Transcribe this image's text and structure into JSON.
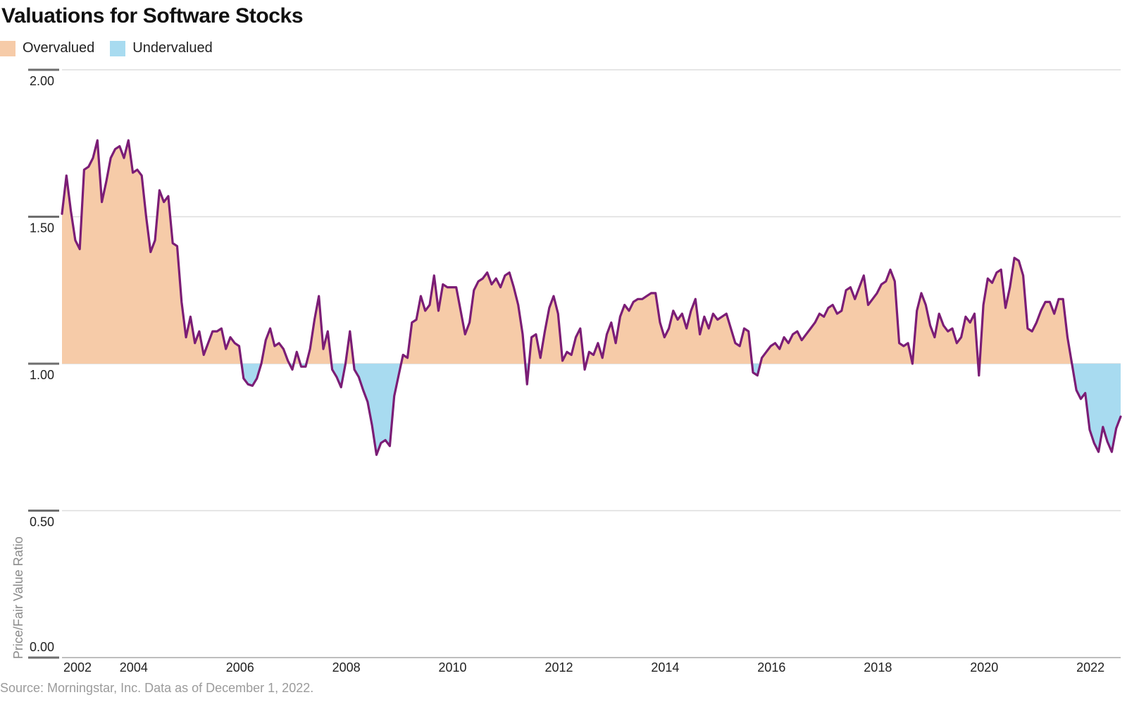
{
  "header": {
    "title": "Valuations for Software Stocks"
  },
  "legend": {
    "items": [
      {
        "label": "Overvalued",
        "color": "#F6CBA8"
      },
      {
        "label": "Undervalued",
        "color": "#A8DBF0"
      }
    ]
  },
  "footer": {
    "source": "Source: Morningstar, Inc. Data as of December 1, 2022."
  },
  "chart_data": {
    "type": "area",
    "title": "Valuations for Software Stocks",
    "ylabel": "Price/Fair Value Ratio",
    "xlabel": "",
    "ylim": [
      0,
      2
    ],
    "yticks": [
      2.0,
      1.5,
      1.0,
      0.5,
      0.0
    ],
    "ytick_labels": [
      "2.00",
      "1.50",
      "1.00",
      "0.50",
      "0.00"
    ],
    "xtick_labels": [
      "2002",
      "2004",
      "2006",
      "2008",
      "2010",
      "2012",
      "2014",
      "2016",
      "2018",
      "2020",
      "2022"
    ],
    "baseline": 1.0,
    "frequency": "monthly",
    "start": "2002-12",
    "end": "2022-11",
    "grid": true,
    "legend_position": "top-left",
    "colors": {
      "overvalued": "#F6CBA8",
      "undervalued": "#A8DBF0",
      "line": "#7B1D76",
      "gridline": "#dedede",
      "axis": "#a8a8a8",
      "tick": "#6e6e6e"
    },
    "values": [
      1.51,
      1.64,
      1.52,
      1.42,
      1.39,
      1.66,
      1.67,
      1.7,
      1.76,
      1.55,
      1.62,
      1.7,
      1.73,
      1.74,
      1.7,
      1.76,
      1.65,
      1.66,
      1.64,
      1.5,
      1.38,
      1.42,
      1.59,
      1.55,
      1.57,
      1.41,
      1.4,
      1.21,
      1.09,
      1.16,
      1.07,
      1.11,
      1.03,
      1.07,
      1.11,
      1.11,
      1.12,
      1.05,
      1.09,
      1.07,
      1.06,
      0.95,
      0.93,
      0.925,
      0.95,
      1.0,
      1.08,
      1.12,
      1.06,
      1.07,
      1.05,
      1.01,
      0.98,
      1.04,
      0.99,
      0.99,
      1.05,
      1.15,
      1.23,
      1.05,
      1.11,
      0.98,
      0.955,
      0.92,
      1.0,
      1.11,
      0.98,
      0.955,
      0.91,
      0.87,
      0.79,
      0.69,
      0.73,
      0.74,
      0.72,
      0.89,
      0.96,
      1.03,
      1.02,
      1.14,
      1.15,
      1.23,
      1.18,
      1.2,
      1.3,
      1.18,
      1.27,
      1.26,
      1.26,
      1.26,
      1.18,
      1.1,
      1.14,
      1.25,
      1.28,
      1.29,
      1.31,
      1.27,
      1.29,
      1.26,
      1.3,
      1.31,
      1.26,
      1.2,
      1.1,
      0.93,
      1.09,
      1.1,
      1.02,
      1.11,
      1.19,
      1.23,
      1.17,
      1.01,
      1.04,
      1.03,
      1.09,
      1.12,
      0.98,
      1.04,
      1.03,
      1.07,
      1.02,
      1.1,
      1.14,
      1.07,
      1.16,
      1.2,
      1.18,
      1.21,
      1.22,
      1.22,
      1.23,
      1.24,
      1.24,
      1.14,
      1.09,
      1.12,
      1.18,
      1.15,
      1.17,
      1.12,
      1.18,
      1.22,
      1.1,
      1.16,
      1.12,
      1.17,
      1.15,
      1.16,
      1.17,
      1.12,
      1.07,
      1.06,
      1.12,
      1.11,
      0.97,
      0.96,
      1.02,
      1.04,
      1.06,
      1.07,
      1.05,
      1.09,
      1.07,
      1.1,
      1.11,
      1.08,
      1.1,
      1.12,
      1.14,
      1.17,
      1.16,
      1.19,
      1.2,
      1.17,
      1.18,
      1.25,
      1.26,
      1.22,
      1.26,
      1.3,
      1.2,
      1.22,
      1.24,
      1.27,
      1.28,
      1.32,
      1.28,
      1.07,
      1.06,
      1.07,
      1.0,
      1.18,
      1.24,
      1.2,
      1.13,
      1.09,
      1.17,
      1.13,
      1.11,
      1.12,
      1.07,
      1.09,
      1.16,
      1.14,
      1.17,
      0.96,
      1.2,
      1.29,
      1.275,
      1.31,
      1.32,
      1.19,
      1.26,
      1.36,
      1.35,
      1.3,
      1.12,
      1.11,
      1.14,
      1.18,
      1.21,
      1.21,
      1.17,
      1.22,
      1.22,
      1.09,
      1.0,
      0.91,
      0.88,
      0.9,
      0.775,
      0.73,
      0.7,
      0.785,
      0.735,
      0.7,
      0.78,
      0.82
    ]
  }
}
